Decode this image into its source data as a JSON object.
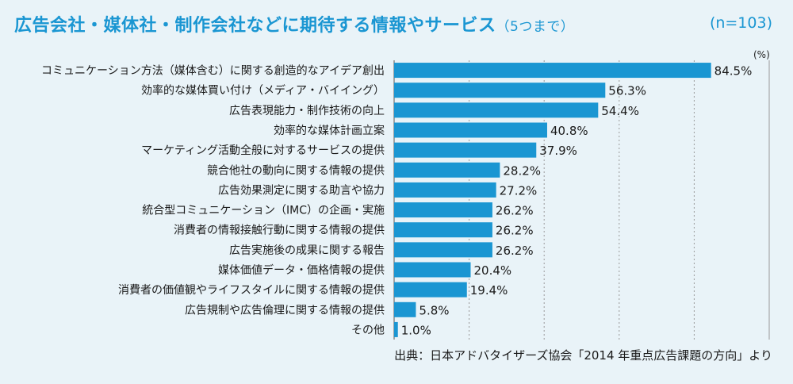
{
  "title": "広告会社・媒体社・制作会社などに期待する情報やサービス",
  "title_note": "（5つまで）",
  "sample_size": "(n=103)",
  "unit": "(%)",
  "source": "出典：日本アドバタイザーズ協会「2014 年重点広告課題の方向」より",
  "colors": {
    "bar": "#1a96d2",
    "title": "#1a96d2",
    "background": "#e9f3f8",
    "grid": "#9a9a9a"
  },
  "chart_data": {
    "type": "bar",
    "orientation": "horizontal",
    "categories": [
      "コミュニケーション方法（媒体含む）に関する創造的なアイデア創出",
      "効率的な媒体買い付け（メディア・バイイング）",
      "広告表現能力・制作技術の向上",
      "効率的な媒体計画立案",
      "マーケティング活動全般に対するサービスの提供",
      "競合他社の動向に関する情報の提供",
      "広告効果測定に関する助言や協力",
      "統合型コミュニケーション（IMC）の企画・実施",
      "消費者の情報接触行動に関する情報の提供",
      "広告実施後の成果に関する報告",
      "媒体価値データ・価格情報の提供",
      "消費者の価値観やライフスタイルに関する情報の提供",
      "広告規制や広告倫理に関する情報の提供",
      "その他"
    ],
    "values": [
      84.5,
      56.3,
      54.4,
      40.8,
      37.9,
      28.2,
      27.2,
      26.2,
      26.2,
      26.2,
      20.4,
      19.4,
      5.8,
      1.0
    ],
    "value_labels": [
      "84.5%",
      "56.3%",
      "54.4%",
      "40.8%",
      "37.9%",
      "28.2%",
      "27.2%",
      "26.2%",
      "26.2%",
      "26.2%",
      "20.4%",
      "19.4%",
      "5.8%",
      "1.0%"
    ],
    "xlim": [
      0,
      100
    ],
    "grid": "vertical dashed"
  }
}
